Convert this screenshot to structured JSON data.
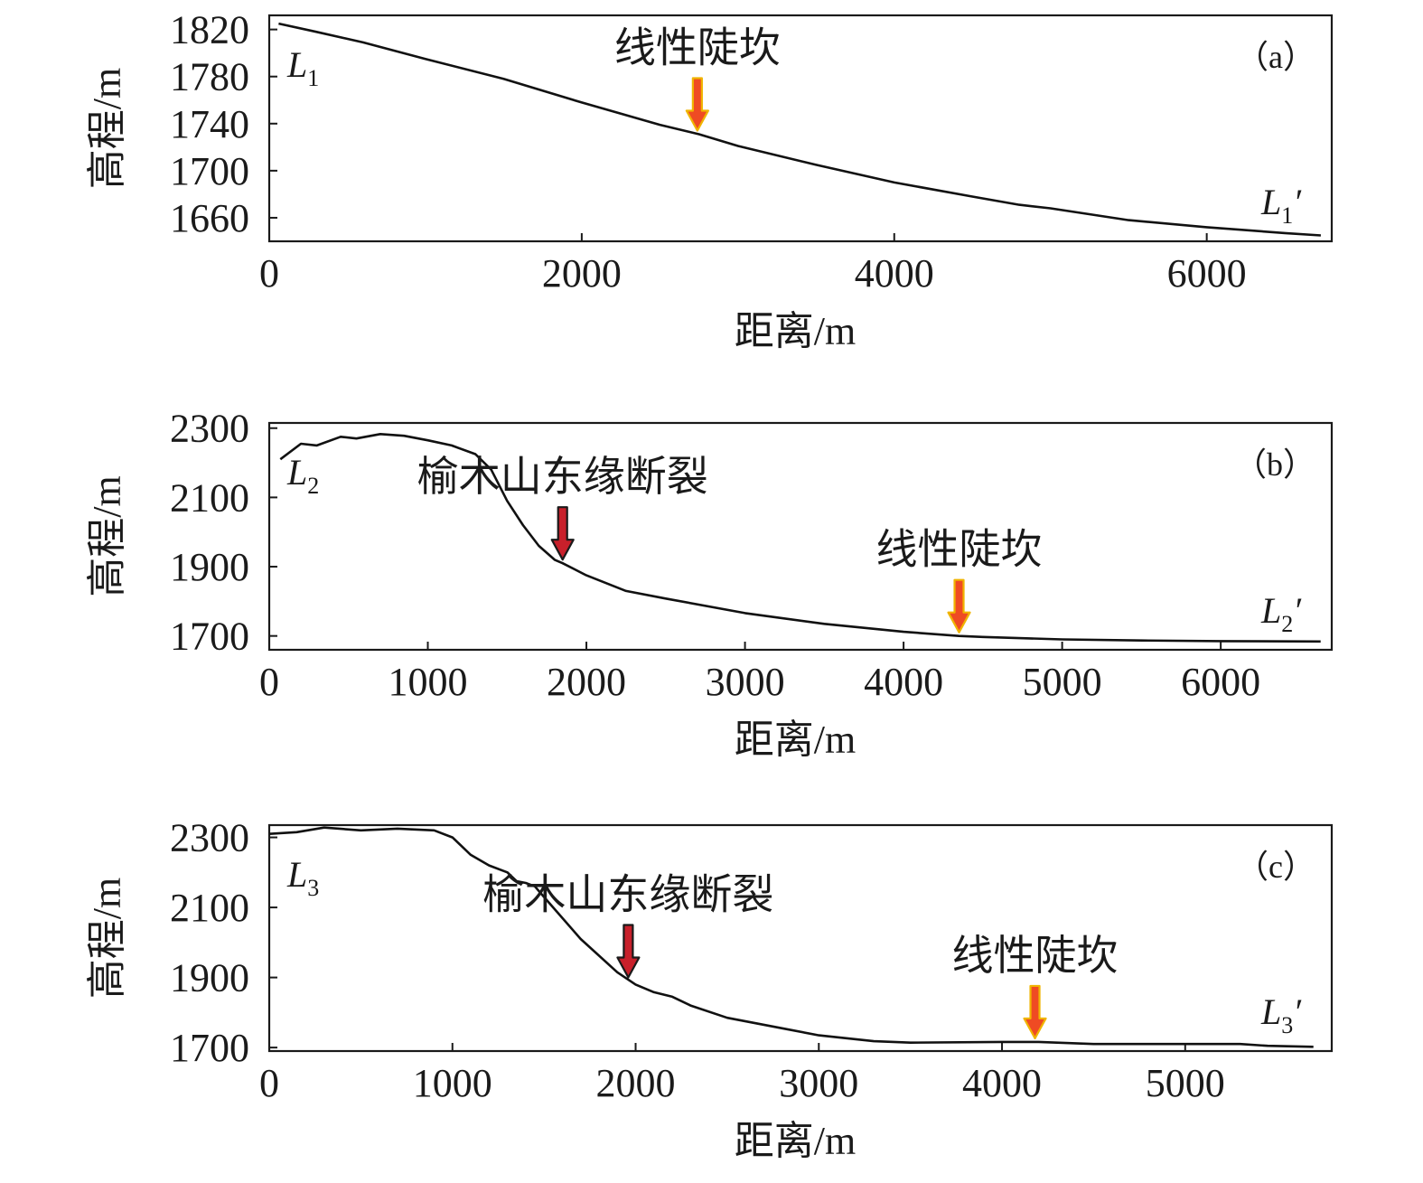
{
  "chart_data": [
    {
      "type": "line",
      "panel_label": "（a）",
      "xlabel": "距离/m",
      "ylabel": "高程/m",
      "xlim": [
        0,
        6800
      ],
      "ylim": [
        1640,
        1832
      ],
      "xticks": [
        0,
        2000,
        4000,
        6000
      ],
      "yticks": [
        1660,
        1700,
        1740,
        1780,
        1820
      ],
      "start_label": {
        "main": "L",
        "sub": "1",
        "prime": ""
      },
      "end_label": {
        "main": "L",
        "sub": "1",
        "prime": "′"
      },
      "series": [
        {
          "x": [
            60,
            300,
            600,
            1000,
            1500,
            2000,
            2500,
            2750,
            3000,
            3500,
            4000,
            4500,
            4800,
            5000,
            5500,
            6000,
            6500,
            6730
          ],
          "y": [
            1825,
            1818,
            1809,
            1795,
            1778,
            1758,
            1739,
            1731,
            1721,
            1705,
            1690,
            1678,
            1671,
            1668,
            1658,
            1652,
            1647,
            1645
          ]
        }
      ],
      "annotations": [
        {
          "text": "线性陡坎",
          "x": 2740,
          "y": 1731,
          "arrow_color": "#ef4b23",
          "arrow_outline": "#f0b400"
        }
      ]
    },
    {
      "type": "line",
      "panel_label": "（b）",
      "xlabel": "距离/m",
      "ylabel": "高程/m",
      "xlim": [
        0,
        6700
      ],
      "ylim": [
        1660,
        2315
      ],
      "xticks": [
        0,
        1000,
        2000,
        3000,
        4000,
        5000,
        6000
      ],
      "yticks": [
        1700,
        1900,
        2100,
        2300
      ],
      "start_label": {
        "main": "L",
        "sub": "2",
        "prime": ""
      },
      "end_label": {
        "main": "L",
        "sub": "2",
        "prime": "′"
      },
      "series": [
        {
          "x": [
            70,
            200,
            300,
            450,
            550,
            700,
            850,
            1000,
            1150,
            1300,
            1400,
            1500,
            1600,
            1700,
            1800,
            1850,
            2000,
            2250,
            2500,
            3000,
            3500,
            4000,
            4350,
            4500,
            5000,
            5500,
            6000,
            6630
          ],
          "y": [
            2210,
            2255,
            2250,
            2275,
            2270,
            2283,
            2278,
            2265,
            2250,
            2225,
            2180,
            2090,
            2020,
            1960,
            1920,
            1910,
            1875,
            1830,
            1808,
            1766,
            1735,
            1712,
            1700,
            1697,
            1690,
            1687,
            1685,
            1684
          ]
        }
      ],
      "annotations": [
        {
          "text": "榆木山东缘断裂",
          "x": 1850,
          "y": 1910,
          "arrow_color": "#c8202b",
          "arrow_outline": "#1a1a1a"
        },
        {
          "text": "线性陡坎",
          "x": 4350,
          "y": 1700,
          "arrow_color": "#ef4b23",
          "arrow_outline": "#f0b400"
        }
      ]
    },
    {
      "type": "line",
      "panel_label": "（c）",
      "xlabel": "距离/m",
      "ylabel": "高程/m",
      "xlim": [
        0,
        5800
      ],
      "ylim": [
        1690,
        2335
      ],
      "xticks": [
        0,
        1000,
        2000,
        3000,
        4000,
        5000
      ],
      "yticks": [
        1700,
        1900,
        2100,
        2300
      ],
      "start_label": {
        "main": "L",
        "sub": "3",
        "prime": ""
      },
      "end_label": {
        "main": "L",
        "sub": "3",
        "prime": "′"
      },
      "series": [
        {
          "x": [
            0,
            150,
            300,
            500,
            700,
            900,
            1000,
            1100,
            1200,
            1300,
            1350,
            1400,
            1450,
            1500,
            1700,
            1900,
            2000,
            2100,
            2200,
            2300,
            2500,
            2800,
            3000,
            3300,
            3500,
            4000,
            4200,
            4500,
            5000,
            5300,
            5450,
            5700
          ],
          "y": [
            2310,
            2315,
            2328,
            2320,
            2325,
            2320,
            2300,
            2250,
            2220,
            2200,
            2175,
            2170,
            2160,
            2130,
            2010,
            1915,
            1880,
            1858,
            1845,
            1820,
            1785,
            1755,
            1735,
            1718,
            1714,
            1716,
            1716,
            1710,
            1710,
            1710,
            1705,
            1702
          ]
        }
      ],
      "annotations": [
        {
          "text": "榆木山东缘断裂",
          "x": 1960,
          "y": 1890,
          "arrow_color": "#c8202b",
          "arrow_outline": "#1a1a1a"
        },
        {
          "text": "线性陡坎",
          "x": 4180,
          "y": 1716,
          "arrow_color": "#ef4b23",
          "arrow_outline": "#f0b400"
        }
      ]
    }
  ]
}
